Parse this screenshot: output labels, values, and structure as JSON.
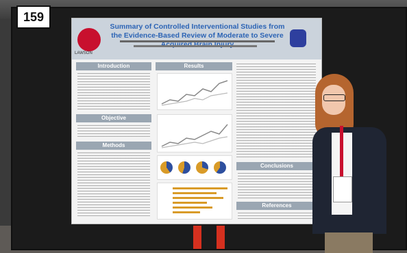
{
  "board": {
    "number": "159"
  },
  "poster": {
    "title": "Summary of Controlled Interventional Studies from the Evidence-Based Review of Moderate to Severe Acquired Brain Injury",
    "logo_text": "LAWSON",
    "sections": {
      "introduction": "Introduction",
      "objective": "Objective",
      "methods": "Methods",
      "results": "Results",
      "conclusions": "Conclusions",
      "references": "References"
    }
  },
  "colors": {
    "title_blue": "#2c64b5",
    "section_grey": "#9aa6b2",
    "accent_red": "#c8102e",
    "bar_orange": "#d99b28"
  }
}
